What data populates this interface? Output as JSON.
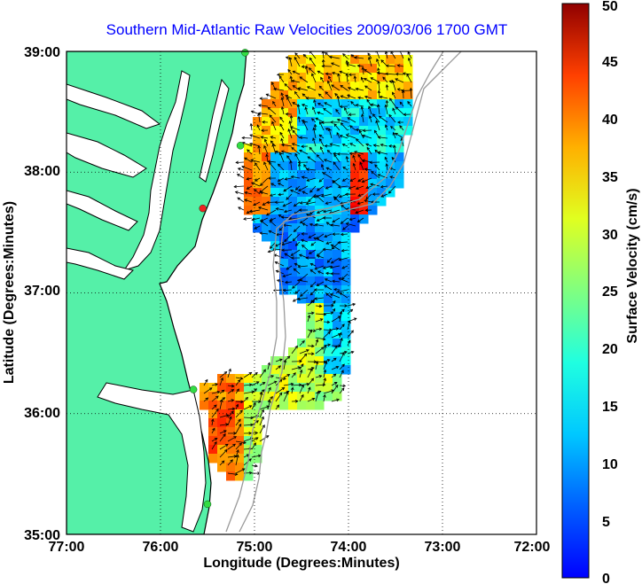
{
  "title": "Southern Mid-Atlantic Raw Velocities 2009/03/06 1700 GMT",
  "map": {
    "xlabel": "Longitude (Degrees:Minutes)",
    "ylabel": "Latitude (Degrees:Minutes)",
    "x_ticks": [
      "77:00",
      "76:00",
      "75:00",
      "74:00",
      "73:00",
      "72:00"
    ],
    "y_ticks": [
      "39:00",
      "38:00",
      "37:00",
      "36:00",
      "35:00"
    ],
    "lon_range": [
      -77,
      -72
    ],
    "lat_range": [
      35,
      39
    ],
    "grid": "dotted",
    "land_color": "#55f0a8",
    "coast_color": "#000000",
    "isobath_color": "#9a9a9a"
  },
  "stations": [
    {
      "lon": -75.1,
      "lat": 38.99,
      "color": "#33dd44"
    },
    {
      "lon": -75.15,
      "lat": 38.22,
      "color": "#33dd44"
    },
    {
      "lon": -75.55,
      "lat": 37.7,
      "color": "#ee2222"
    },
    {
      "lon": -75.65,
      "lat": 36.2,
      "color": "#33dd44"
    },
    {
      "lon": -75.5,
      "lat": 35.25,
      "color": "#33dd44"
    }
  ],
  "colorbar": {
    "label": "Surface Velocity (cm/s)",
    "ticks": [
      "0",
      "5",
      "10",
      "15",
      "20",
      "25",
      "30",
      "35",
      "40",
      "45",
      "50"
    ],
    "range": [
      0,
      50
    ],
    "colormap": "jet"
  }
}
